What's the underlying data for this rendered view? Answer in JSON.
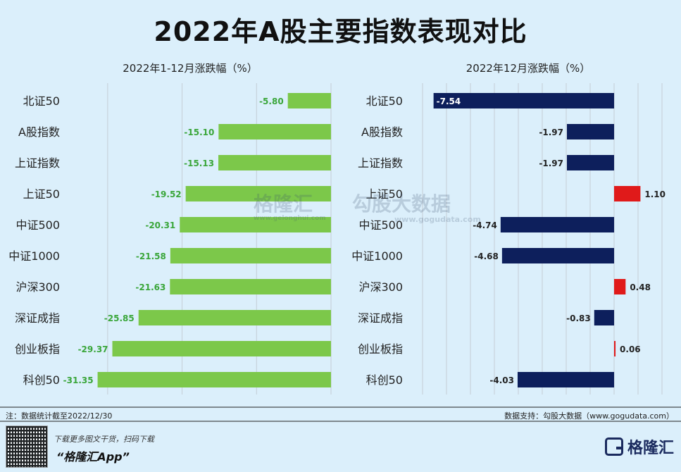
{
  "title": "2022年A股主要指数表现对比",
  "colors": {
    "left_bar": "#7cc84a",
    "left_label": "#3aa63a",
    "neg_bar": "#0d1f5c",
    "pos_bar": "#e01a1a"
  },
  "chart_data": [
    {
      "type": "bar",
      "orientation": "horizontal",
      "title": "2022年1-12月涨跌幅（%）",
      "categories": [
        "北证50",
        "A股指数",
        "上证指数",
        "上证50",
        "中证500",
        "中证1000",
        "沪深300",
        "深证成指",
        "创业板指",
        "科创50"
      ],
      "values": [
        -5.8,
        -15.1,
        -15.13,
        -19.52,
        -20.31,
        -21.58,
        -21.63,
        -25.85,
        -29.37,
        -31.35
      ],
      "labels": [
        "-5.80",
        "-15.10",
        "-15.13",
        "-19.52",
        "-20.31",
        "-21.58",
        "-21.63",
        "-25.85",
        "-29.37",
        "-31.35"
      ],
      "xlim": [
        -35,
        0
      ],
      "grid": true
    },
    {
      "type": "bar",
      "orientation": "horizontal",
      "title": "2022年12月涨跌幅（%）",
      "categories": [
        "北证50",
        "A股指数",
        "上证指数",
        "上证50",
        "中证500",
        "中证1000",
        "沪深300",
        "深证成指",
        "创业板指",
        "科创50"
      ],
      "values": [
        -7.54,
        -1.97,
        -1.97,
        1.1,
        -4.74,
        -4.68,
        0.48,
        -0.83,
        0.06,
        -4.03
      ],
      "labels": [
        "-7.54",
        "-1.97",
        "-1.97",
        "1.10",
        "-4.74",
        "-4.68",
        "0.48",
        "-0.83",
        "0.06",
        "-4.03"
      ],
      "xlim": [
        -8,
        2
      ],
      "grid": true
    }
  ],
  "footer": {
    "note": "注：数据统计截至2022/12/30",
    "source": "数据支持：勾股大数据（www.gogudata.com）",
    "app_hint": "下载更多图文干货，扫码下载",
    "app_name": "“格隆汇App”",
    "logo_text": "格隆汇"
  },
  "watermark": {
    "brand1": "格隆汇",
    "brand1_url": "www.gelonghui.com",
    "brand2": "勾股大数据",
    "brand2_url": "www.gogudata.com"
  }
}
